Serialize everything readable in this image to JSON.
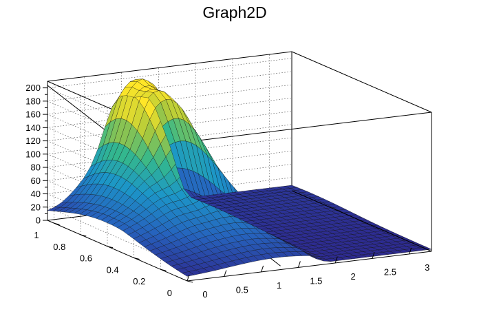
{
  "chart_data": {
    "type": "surface",
    "title": "Graph2D",
    "xlabel": "",
    "ylabel": "",
    "zlabel": "",
    "xlim": [
      0,
      3.3
    ],
    "ylim": [
      0,
      1.05
    ],
    "zlim": [
      0,
      210
    ],
    "x_ticks": [
      0,
      0.5,
      1,
      1.5,
      2,
      2.5,
      3
    ],
    "x_tick_labels": [
      "0",
      "0.5",
      "1",
      "1.5",
      "2",
      "2.5",
      "3"
    ],
    "y_ticks": [
      0,
      0.2,
      0.4,
      0.6,
      0.8,
      1
    ],
    "y_tick_labels": [
      "0",
      "0.2",
      "0.4",
      "0.6",
      "0.8",
      "1"
    ],
    "z_ticks": [
      0,
      20,
      40,
      60,
      80,
      100,
      120,
      140,
      160,
      180,
      200
    ],
    "z_tick_labels": [
      "0",
      "20",
      "40",
      "60",
      "80",
      "100",
      "120",
      "140",
      "160",
      "180",
      "200"
    ],
    "grid": true,
    "colormap": "viridis-like",
    "surface_peak": {
      "x": 1.05,
      "y": 0.95,
      "z": 205
    }
  }
}
